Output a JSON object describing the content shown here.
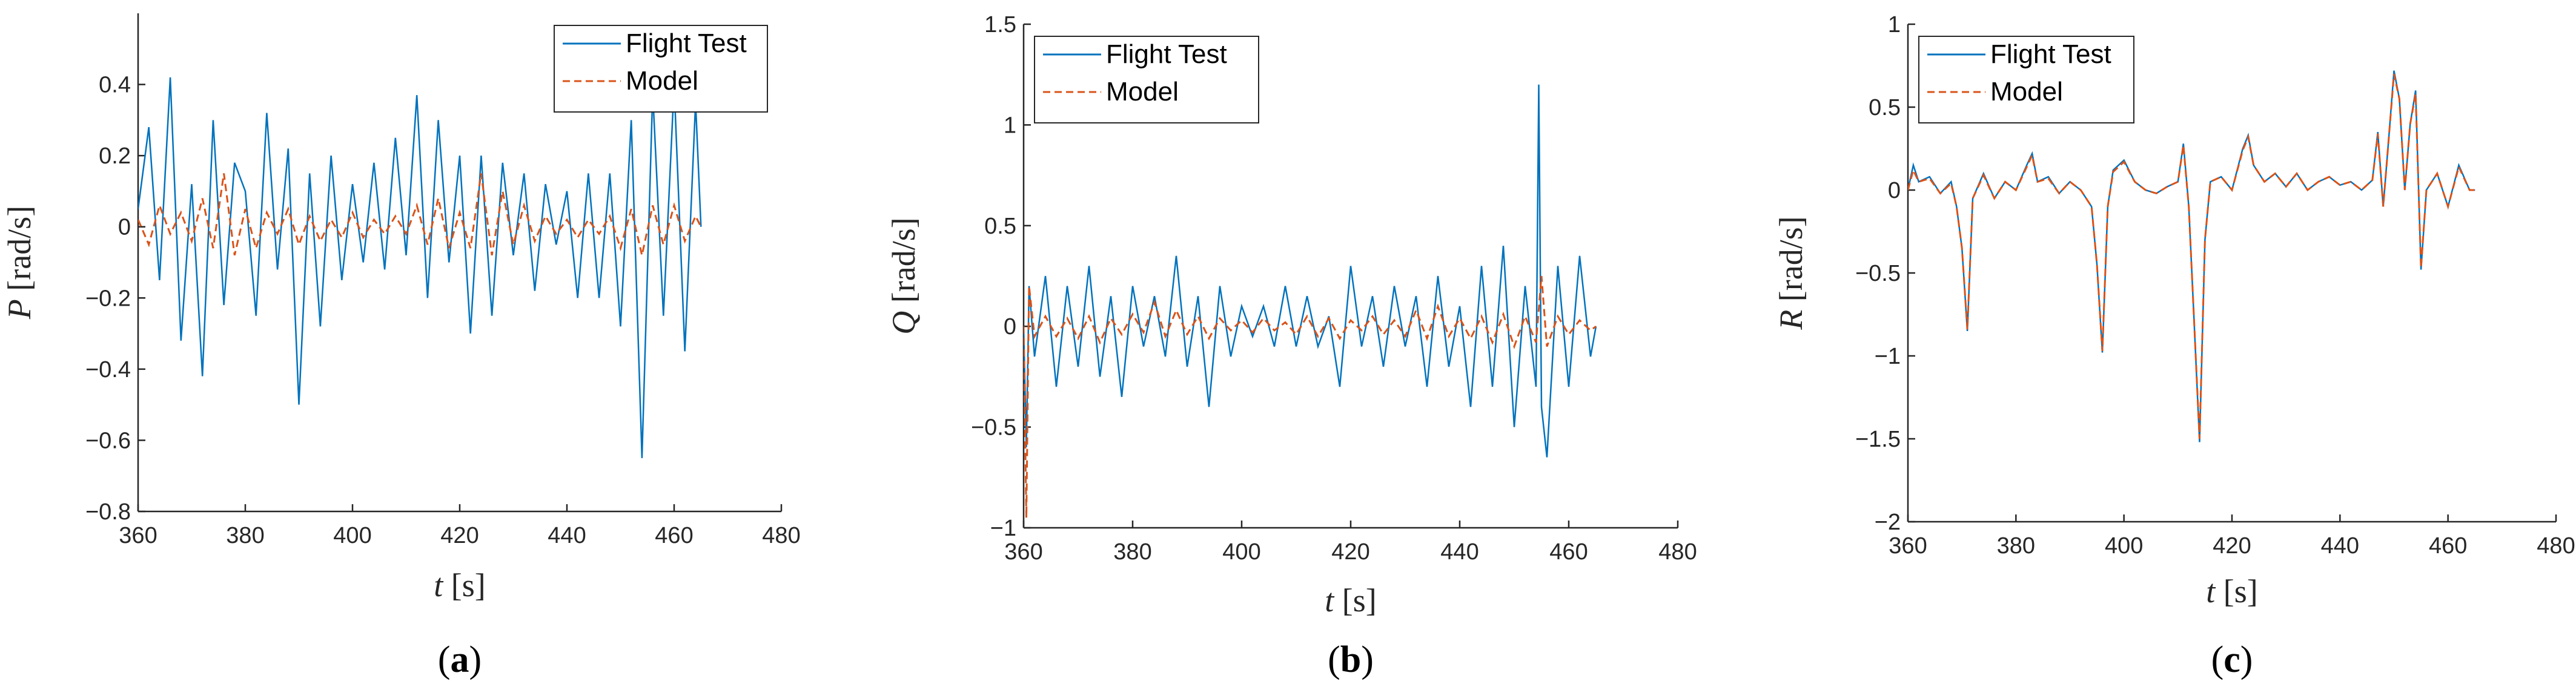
{
  "colors": {
    "flight": "#0072bd",
    "model": "#d95319",
    "axis": "#262626"
  },
  "chart_data": [
    {
      "type": "line",
      "caption": "(a)",
      "xlabel_symbol": "t",
      "xlabel_unit": "[s]",
      "ylabel_symbol": "P",
      "ylabel_unit": "[rad/s]",
      "xlim": [
        360,
        480
      ],
      "ylim": [
        -0.8,
        0.6
      ],
      "xticks": [
        360,
        380,
        400,
        420,
        440,
        460,
        480
      ],
      "yticks": [
        -0.8,
        -0.6,
        -0.4,
        -0.2,
        0,
        0.2,
        0.4
      ],
      "ytick_labels": [
        "−0.8",
        "−0.6",
        "−0.4",
        "−0.2",
        "0",
        "0.2",
        "0.4"
      ],
      "legend": {
        "position": "top-right",
        "entries": [
          "Flight Test",
          "Model"
        ]
      },
      "series": [
        {
          "name": "Flight Test",
          "style": "solid",
          "x": [
            360,
            362,
            364,
            366,
            368,
            370,
            372,
            374,
            376,
            378,
            380,
            382,
            384,
            386,
            388,
            390,
            392,
            394,
            396,
            398,
            400,
            402,
            404,
            406,
            408,
            410,
            412,
            414,
            416,
            418,
            420,
            422,
            424,
            426,
            428,
            430,
            432,
            434,
            436,
            438,
            440,
            442,
            444,
            446,
            448,
            450,
            452,
            454,
            456,
            458,
            460,
            462,
            464,
            465
          ],
          "y": [
            0.05,
            0.28,
            -0.15,
            0.42,
            -0.32,
            0.12,
            -0.42,
            0.3,
            -0.22,
            0.18,
            0.1,
            -0.25,
            0.32,
            -0.12,
            0.22,
            -0.5,
            0.15,
            -0.28,
            0.2,
            -0.15,
            0.12,
            -0.1,
            0.18,
            -0.12,
            0.25,
            -0.08,
            0.37,
            -0.2,
            0.3,
            -0.1,
            0.2,
            -0.3,
            0.2,
            -0.25,
            0.18,
            -0.08,
            0.15,
            -0.18,
            0.12,
            -0.05,
            0.1,
            -0.2,
            0.15,
            -0.2,
            0.15,
            -0.28,
            0.3,
            -0.65,
            0.38,
            -0.25,
            0.4,
            -0.35,
            0.35,
            0.0
          ]
        },
        {
          "name": "Model",
          "style": "dashed",
          "x": [
            360,
            362,
            364,
            366,
            368,
            370,
            372,
            374,
            376,
            378,
            380,
            382,
            384,
            386,
            388,
            390,
            392,
            394,
            396,
            398,
            400,
            402,
            404,
            406,
            408,
            410,
            412,
            414,
            416,
            418,
            420,
            422,
            424,
            426,
            428,
            430,
            432,
            434,
            436,
            438,
            440,
            442,
            444,
            446,
            448,
            450,
            452,
            454,
            456,
            458,
            460,
            462,
            464,
            465
          ],
          "y": [
            0.02,
            -0.05,
            0.06,
            -0.02,
            0.04,
            -0.04,
            0.08,
            -0.06,
            0.15,
            -0.08,
            0.05,
            -0.06,
            0.04,
            -0.02,
            0.05,
            -0.05,
            0.03,
            -0.04,
            0.02,
            -0.03,
            0.04,
            -0.03,
            0.02,
            -0.02,
            0.03,
            -0.02,
            0.06,
            -0.05,
            0.08,
            -0.06,
            0.04,
            -0.06,
            0.15,
            -0.08,
            0.1,
            -0.05,
            0.06,
            -0.04,
            0.03,
            -0.02,
            0.02,
            -0.03,
            0.02,
            -0.02,
            0.03,
            -0.06,
            0.05,
            -0.08,
            0.06,
            -0.05,
            0.06,
            -0.04,
            0.03,
            0.0
          ]
        }
      ]
    },
    {
      "type": "line",
      "caption": "(b)",
      "xlabel_symbol": "t",
      "xlabel_unit": "[s]",
      "ylabel_symbol": "Q",
      "ylabel_unit": "[rad/s]",
      "xlim": [
        360,
        480
      ],
      "ylim": [
        -1,
        1.5
      ],
      "xticks": [
        360,
        380,
        400,
        420,
        440,
        460,
        480
      ],
      "yticks": [
        -1,
        -0.5,
        0,
        0.5,
        1,
        1.5
      ],
      "ytick_labels": [
        "−1",
        "−0.5",
        "0",
        "0.5",
        "1",
        "1.5"
      ],
      "legend": {
        "position": "top-left",
        "entries": [
          "Flight Test",
          "Model"
        ]
      },
      "series": [
        {
          "name": "Flight Test",
          "style": "solid",
          "x": [
            360,
            360.5,
            361,
            362,
            364,
            366,
            368,
            370,
            372,
            374,
            376,
            378,
            380,
            382,
            384,
            386,
            388,
            390,
            392,
            394,
            396,
            398,
            400,
            402,
            404,
            406,
            408,
            410,
            412,
            414,
            416,
            418,
            420,
            422,
            424,
            426,
            428,
            430,
            432,
            434,
            436,
            438,
            440,
            442,
            444,
            446,
            448,
            450,
            452,
            454,
            454.5,
            455,
            456,
            458,
            460,
            462,
            464,
            465
          ],
          "y": [
            0.0,
            -0.6,
            0.2,
            -0.15,
            0.25,
            -0.3,
            0.2,
            -0.2,
            0.3,
            -0.25,
            0.15,
            -0.35,
            0.2,
            -0.1,
            0.15,
            -0.15,
            0.35,
            -0.2,
            0.15,
            -0.4,
            0.2,
            -0.15,
            0.1,
            -0.05,
            0.1,
            -0.1,
            0.2,
            -0.1,
            0.15,
            -0.1,
            0.05,
            -0.3,
            0.3,
            -0.1,
            0.15,
            -0.2,
            0.2,
            -0.1,
            0.15,
            -0.3,
            0.25,
            -0.2,
            0.1,
            -0.4,
            0.3,
            -0.3,
            0.4,
            -0.5,
            0.2,
            -0.3,
            1.2,
            -0.4,
            -0.65,
            0.3,
            -0.3,
            0.35,
            -0.15,
            0.0
          ]
        },
        {
          "name": "Model",
          "style": "dashed",
          "x": [
            360,
            360.5,
            361,
            362,
            364,
            366,
            368,
            370,
            372,
            374,
            376,
            378,
            380,
            382,
            384,
            386,
            388,
            390,
            392,
            394,
            396,
            398,
            400,
            402,
            404,
            406,
            408,
            410,
            412,
            414,
            416,
            418,
            420,
            422,
            424,
            426,
            428,
            430,
            432,
            434,
            436,
            438,
            440,
            442,
            444,
            446,
            448,
            450,
            452,
            454,
            455,
            456,
            458,
            460,
            462,
            464,
            465
          ],
          "y": [
            0.0,
            -0.95,
            0.2,
            -0.05,
            0.05,
            -0.05,
            0.04,
            -0.06,
            0.05,
            -0.08,
            0.04,
            -0.04,
            0.06,
            -0.03,
            0.12,
            -0.05,
            0.08,
            -0.04,
            0.05,
            -0.06,
            0.04,
            -0.02,
            0.03,
            -0.03,
            0.04,
            -0.02,
            0.02,
            -0.04,
            0.05,
            -0.05,
            0.04,
            -0.06,
            0.03,
            -0.02,
            0.05,
            -0.04,
            0.03,
            -0.05,
            0.08,
            -0.06,
            0.1,
            -0.05,
            0.04,
            -0.06,
            0.05,
            -0.08,
            0.06,
            -0.1,
            0.05,
            -0.08,
            0.25,
            -0.1,
            0.05,
            -0.04,
            0.03,
            -0.02,
            0.0
          ]
        }
      ]
    },
    {
      "type": "line",
      "caption": "(c)",
      "xlabel_symbol": "t",
      "xlabel_unit": "[s]",
      "ylabel_symbol": "R",
      "ylabel_unit": "[rad/s]",
      "xlim": [
        360,
        480
      ],
      "ylim": [
        -2,
        1
      ],
      "xticks": [
        360,
        380,
        400,
        420,
        440,
        460,
        480
      ],
      "yticks": [
        -2,
        -1.5,
        -1,
        -0.5,
        0,
        0.5,
        1
      ],
      "ytick_labels": [
        "−2",
        "−1.5",
        "−1",
        "−0.5",
        "0",
        "0.5",
        "1"
      ],
      "legend": {
        "position": "top-left",
        "entries": [
          "Flight Test",
          "Model"
        ]
      },
      "series": [
        {
          "name": "Flight Test",
          "style": "solid",
          "x": [
            360,
            361,
            362,
            364,
            366,
            368,
            369,
            370,
            371,
            372,
            374,
            376,
            378,
            380,
            382,
            383,
            384,
            386,
            388,
            390,
            392,
            394,
            395,
            396,
            397,
            398,
            400,
            402,
            404,
            406,
            408,
            410,
            411,
            412,
            413,
            414,
            415,
            416,
            418,
            420,
            422,
            423,
            424,
            426,
            428,
            430,
            432,
            434,
            436,
            438,
            440,
            442,
            444,
            446,
            447,
            448,
            449,
            450,
            451,
            452,
            453,
            454,
            455,
            456,
            458,
            460,
            462,
            464,
            465
          ],
          "y": [
            0.0,
            0.15,
            0.05,
            0.08,
            -0.02,
            0.05,
            -0.1,
            -0.35,
            -0.85,
            -0.05,
            0.1,
            -0.05,
            0.05,
            0.0,
            0.15,
            0.22,
            0.05,
            0.08,
            -0.02,
            0.05,
            0.0,
            -0.1,
            -0.45,
            -0.98,
            -0.1,
            0.12,
            0.18,
            0.05,
            0.0,
            -0.02,
            0.02,
            0.05,
            0.28,
            -0.1,
            -0.8,
            -1.52,
            -0.3,
            0.05,
            0.08,
            0.0,
            0.25,
            0.33,
            0.15,
            0.05,
            0.1,
            0.02,
            0.1,
            0.0,
            0.05,
            0.08,
            0.03,
            0.05,
            0.0,
            0.06,
            0.35,
            -0.1,
            0.3,
            0.72,
            0.55,
            0.0,
            0.4,
            0.6,
            -0.48,
            0.0,
            0.1,
            -0.1,
            0.15,
            0.0,
            0.0
          ]
        },
        {
          "name": "Model",
          "style": "dashed",
          "x": [
            360,
            361,
            362,
            364,
            366,
            368,
            369,
            370,
            371,
            372,
            374,
            376,
            378,
            380,
            382,
            383,
            384,
            386,
            388,
            390,
            392,
            394,
            395,
            396,
            397,
            398,
            400,
            402,
            404,
            406,
            408,
            410,
            411,
            412,
            413,
            414,
            415,
            416,
            418,
            420,
            422,
            423,
            424,
            426,
            428,
            430,
            432,
            434,
            436,
            438,
            440,
            442,
            444,
            446,
            447,
            448,
            449,
            450,
            451,
            452,
            453,
            454,
            455,
            456,
            458,
            460,
            462,
            464,
            465
          ],
          "y": [
            0.0,
            0.12,
            0.05,
            0.07,
            -0.02,
            0.04,
            -0.1,
            -0.35,
            -0.84,
            -0.05,
            0.09,
            -0.05,
            0.05,
            0.0,
            0.14,
            0.21,
            0.05,
            0.07,
            -0.02,
            0.05,
            0.0,
            -0.1,
            -0.45,
            -0.97,
            -0.1,
            0.11,
            0.17,
            0.05,
            0.0,
            -0.02,
            0.02,
            0.05,
            0.27,
            -0.1,
            -0.8,
            -1.5,
            -0.3,
            0.05,
            0.08,
            0.0,
            0.24,
            0.32,
            0.15,
            0.05,
            0.1,
            0.02,
            0.1,
            0.0,
            0.05,
            0.08,
            0.03,
            0.05,
            0.0,
            0.06,
            0.34,
            -0.1,
            0.3,
            0.7,
            0.55,
            0.0,
            0.4,
            0.58,
            -0.47,
            0.0,
            0.1,
            -0.1,
            0.14,
            0.0,
            0.0
          ]
        }
      ]
    }
  ]
}
